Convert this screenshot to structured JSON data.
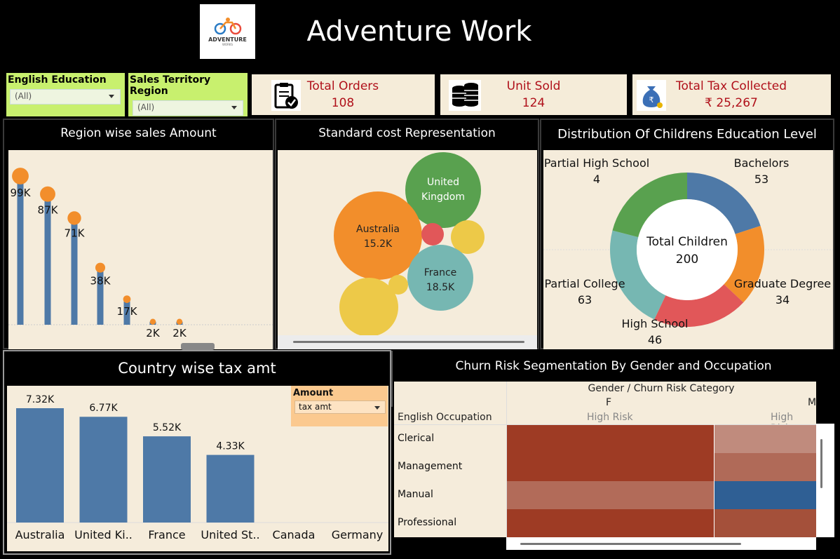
{
  "header": {
    "title": "Adventure Work",
    "logo_text": "ADVENTURE",
    "logo_sub": "WORKS"
  },
  "filters": [
    {
      "label": "English Education",
      "value": "(All)"
    },
    {
      "label": "Sales Territory Region",
      "value": "(All)"
    }
  ],
  "kpis": [
    {
      "label": "Total Orders",
      "value": "108",
      "icon": "clipboard-check-icon"
    },
    {
      "label": "Unit Sold",
      "value": "124",
      "icon": "coin-stack-icon"
    },
    {
      "label": "Total Tax Collected",
      "value": "₹ 25,267",
      "icon": "money-bag-icon"
    }
  ],
  "colors": {
    "accent_red": "#b0101a",
    "bar_blue": "#4e79a7",
    "dot_orange": "#f28e2b",
    "filter_green": "#c8f06e",
    "panel_bg": "#f5ecdb"
  },
  "region_sales": {
    "title": "Region wise sales Amount",
    "chart_data": {
      "type": "bar",
      "title": "Region wise sales Amount",
      "values": [
        99,
        87,
        71,
        38,
        17,
        2,
        2
      ],
      "labels": [
        "99K",
        "87K",
        "71K",
        "38K",
        "17K",
        "2K",
        "2K"
      ],
      "unit": "K"
    }
  },
  "standard_cost": {
    "title": "Standard cost Representation",
    "bubbles": [
      {
        "name": "United Kingdom",
        "label1": "United",
        "label2": "Kingdom",
        "value": ""
      },
      {
        "name": "Australia",
        "label1": "Australia",
        "label2": "15.2K",
        "value": "15.2K"
      },
      {
        "name": "France",
        "label1": "France",
        "label2": "18.5K",
        "value": "18.5K"
      }
    ]
  },
  "education": {
    "title": "Distribution Of Childrens Education Level",
    "center_label": "Total Children",
    "center_value": "200",
    "chart_data": {
      "type": "pie",
      "categories": [
        "Bachelors",
        "Graduate Degree",
        "High School",
        "Partial College",
        "Partial High School"
      ],
      "values": [
        53,
        34,
        46,
        63,
        4
      ]
    },
    "labels": [
      {
        "name": "Partial High School",
        "value": "4"
      },
      {
        "name": "Bachelors",
        "value": "53"
      },
      {
        "name": "Partial College",
        "value": "63"
      },
      {
        "name": "Graduate Degree",
        "value": "34"
      },
      {
        "name": "High School",
        "value": "46"
      }
    ]
  },
  "tax": {
    "title": "Country wise tax amt",
    "param_label": "Amount",
    "param_value": "tax amt",
    "chart_data": {
      "type": "bar",
      "categories": [
        "Australia",
        "United Ki..",
        "France",
        "United St..",
        "Canada",
        "Germany"
      ],
      "values": [
        7.32,
        6.77,
        5.52,
        4.33,
        0,
        0
      ],
      "labels": [
        "7.32K",
        "6.77K",
        "5.52K",
        "4.33K",
        "",
        ""
      ]
    }
  },
  "churn": {
    "title": "Churn Risk Segmentation By Gender and Occupation",
    "header_top": "Gender  /  Churn Risk Category",
    "row_header": "English Occupation",
    "columns": [
      {
        "gender": "F",
        "risk": "High Risk"
      },
      {
        "gender": "M",
        "risk": "High Risk"
      }
    ],
    "rows": [
      "Clerical",
      "Management",
      "Manual",
      "Professional"
    ],
    "cells": [
      [
        "#9e3b24",
        "#c08b7d"
      ],
      [
        "#9e3b24",
        "#b06a58"
      ],
      [
        "#b26b59",
        "#2f5f94"
      ],
      [
        "#9e3b24",
        "#a4503a"
      ]
    ]
  }
}
